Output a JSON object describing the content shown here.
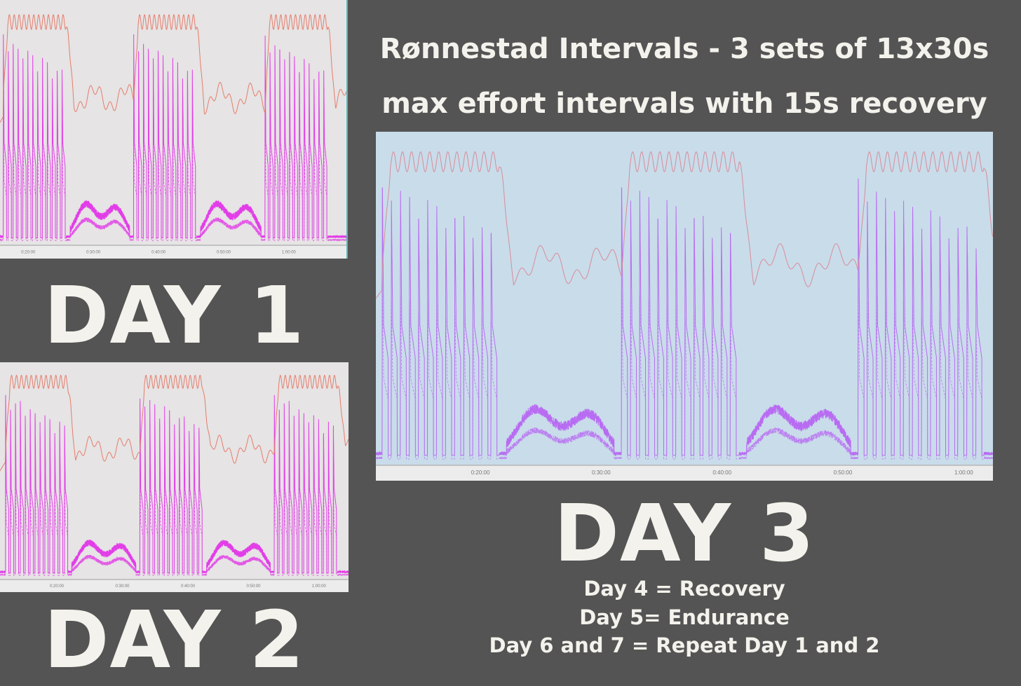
{
  "title": {
    "line1": "Rønnestad Intervals - 3 sets of 13x30s",
    "line2": "max effort intervals with 15s recovery"
  },
  "labels": {
    "day1": "DAY 1",
    "day2": "DAY 2",
    "day3": "DAY 3"
  },
  "notes": [
    "Day 4 = Recovery",
    "Day 5= Endurance",
    "Day 6 and 7 = Repeat Day 1 and 2"
  ],
  "colors": {
    "background": "#545454",
    "text": "#f4f2ec"
  },
  "chart_data": [
    {
      "type": "line",
      "label": "DAY 1",
      "x_ticks": [
        "0:20:00",
        "0:30:00",
        "0:40:00",
        "0:50:00",
        "1:00:00"
      ],
      "xlim": [
        "0:15:40",
        "1:08:50"
      ],
      "intervals_per_set": 13,
      "work_seconds": 30,
      "recovery_seconds": 15,
      "sets": [
        {
          "start": "0:16:10",
          "end": "0:25:50"
        },
        {
          "start": "0:36:10",
          "end": "0:45:50"
        },
        {
          "start": "0:56:20",
          "end": "1:06:00"
        }
      ],
      "plot_background": "#e6e4e4",
      "heart_rate_color": "#e57c6c",
      "power_color": "#e23ee8"
    },
    {
      "type": "line",
      "label": "DAY 2",
      "x_ticks": [
        "0:20:00",
        "0:30:00",
        "0:40:00",
        "0:50:00",
        "1:00:00"
      ],
      "xlim": [
        "0:11:20",
        "1:04:30"
      ],
      "intervals_per_set": 13,
      "work_seconds": 30,
      "recovery_seconds": 15,
      "sets": [
        {
          "start": "0:12:10",
          "end": "0:21:40"
        },
        {
          "start": "0:32:40",
          "end": "0:42:15"
        },
        {
          "start": "0:53:10",
          "end": "1:02:50"
        }
      ],
      "plot_background": "#e6e4e4",
      "heart_rate_color": "#e57c6c",
      "power_color": "#e23ee8"
    },
    {
      "type": "line",
      "label": "DAY 3",
      "x_ticks": [
        "0:20:00",
        "0:30:00",
        "0:40:00",
        "0:50:00",
        "1:00:00"
      ],
      "xlim": [
        "0:11:21",
        "1:02:25"
      ],
      "intervals_per_set": 13,
      "work_seconds": 30,
      "recovery_seconds": 15,
      "sets": [
        {
          "start": "0:11:52",
          "end": "0:21:33"
        },
        {
          "start": "0:31:40",
          "end": "0:41:25"
        },
        {
          "start": "0:51:15",
          "end": "1:01:40"
        }
      ],
      "plot_background": "#c9dcea",
      "heart_rate_color": "#d88c9a",
      "power_color": "#b86cf2"
    }
  ]
}
